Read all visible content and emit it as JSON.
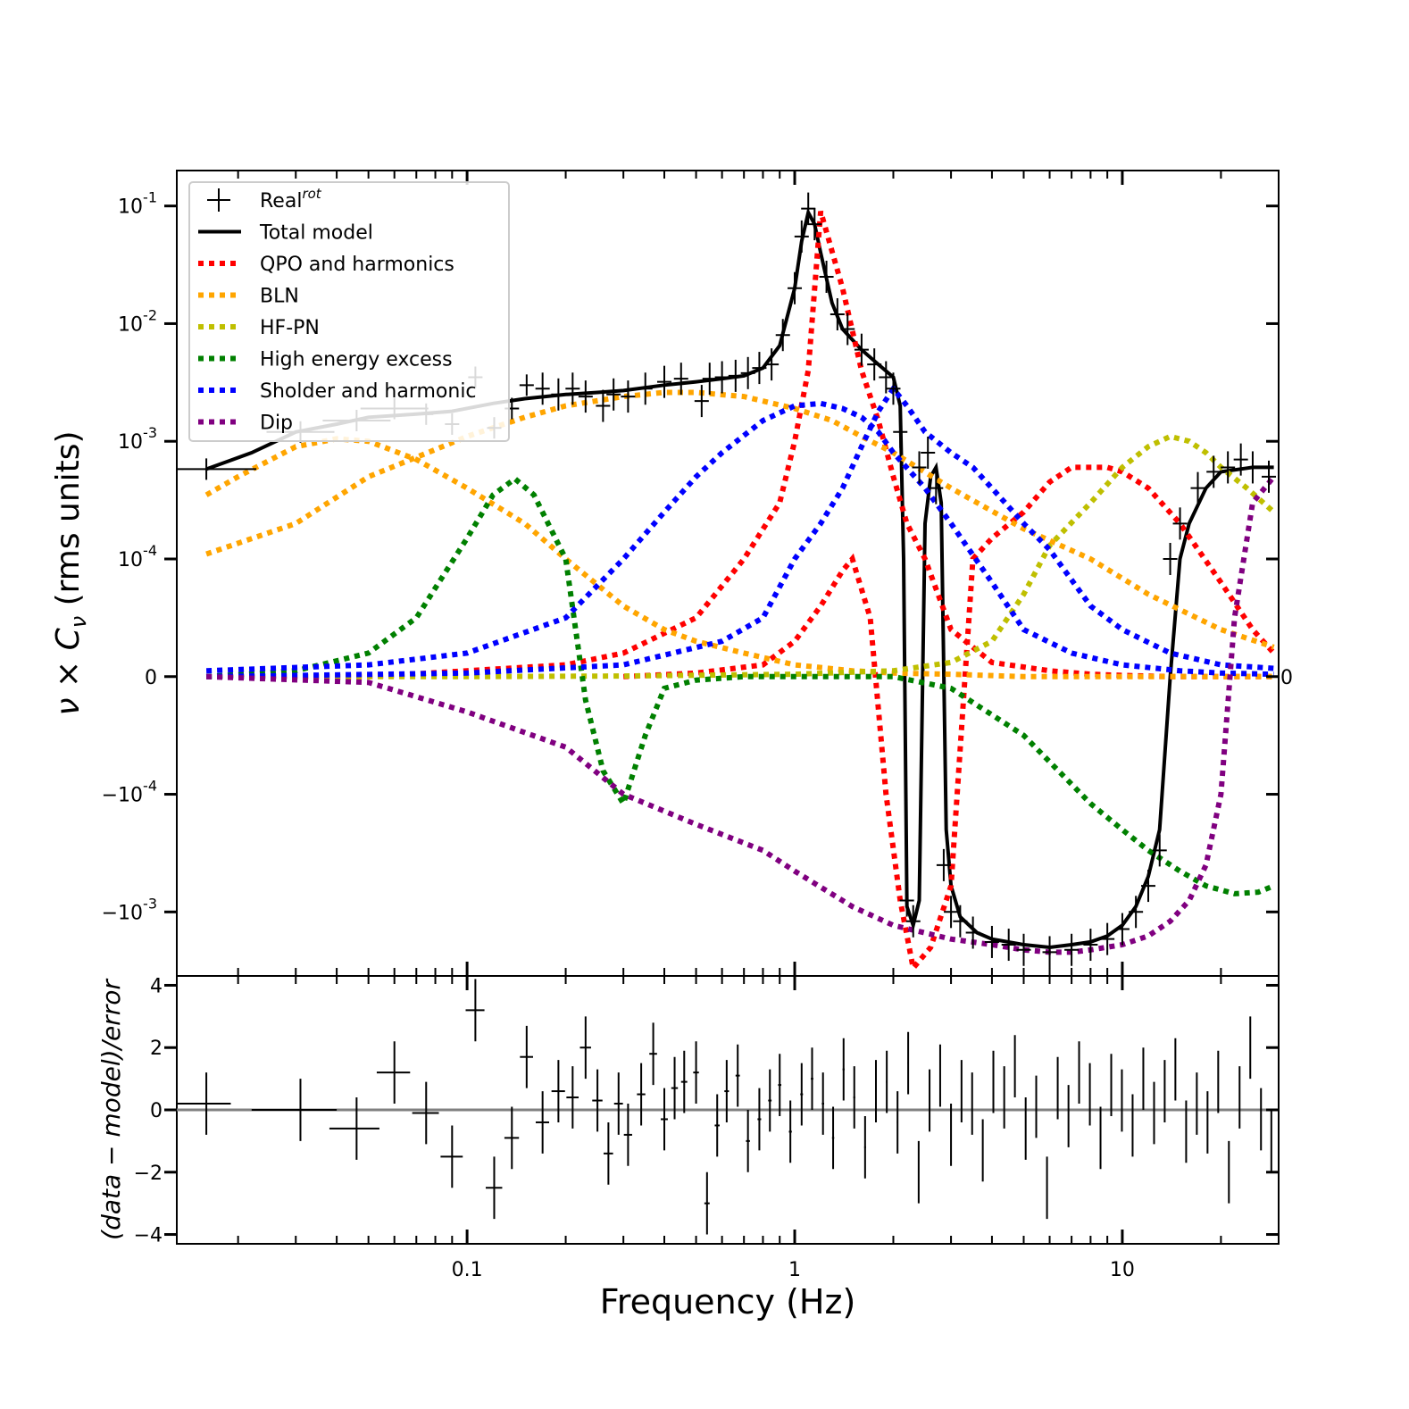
{
  "chart_data": [
    {
      "type": "line",
      "panel": "main",
      "x_scale": "log",
      "y_scale": "symlog",
      "xlim": [
        0.013,
        30
      ],
      "ylim": [
        -0.0035,
        0.2
      ],
      "ylabel": "ν × C_ν (rms units)",
      "ytick_labels": [
        "10^-1",
        "10^-2",
        "10^-3",
        "10^-4",
        "0",
        "−10^-4",
        "−10^-3"
      ],
      "ytick_values": [
        0.1,
        0.01,
        0.001,
        0.0001,
        0,
        -0.0001,
        -0.001
      ],
      "right_tick_label": "0",
      "legend_position": "upper-left",
      "series": [
        {
          "name": "Real",
          "name_sup": "rot",
          "style": "errorbar",
          "color": "#000000",
          "x": [
            0.016,
            0.031,
            0.046,
            0.06,
            0.075,
            0.09,
            0.106,
            0.121,
            0.137,
            0.152,
            0.17,
            0.19,
            0.21,
            0.23,
            0.26,
            0.28,
            0.31,
            0.35,
            0.4,
            0.45,
            0.52,
            0.55,
            0.6,
            0.66,
            0.72,
            0.78,
            0.85,
            0.92,
            1.0,
            1.05,
            1.1,
            1.15,
            1.25,
            1.35,
            1.45,
            1.6,
            1.75,
            1.9,
            2.0,
            2.1,
            2.2,
            2.3,
            2.4,
            2.55,
            2.7,
            2.85,
            3.0,
            3.2,
            3.5,
            4.0,
            4.5,
            5.0,
            6.0,
            7.0,
            8.0,
            9.0,
            10.0,
            11.0,
            12.0,
            13.0,
            14.0,
            15.0,
            17.0,
            19.0,
            21.0,
            23.0,
            25.0,
            28.0
          ],
          "y": [
            0.00058,
            0.0012,
            0.0015,
            0.0019,
            0.0017,
            0.0014,
            0.0035,
            0.0013,
            0.0019,
            0.003,
            0.0028,
            0.0025,
            0.0028,
            0.0024,
            0.002,
            0.0025,
            0.0024,
            0.0028,
            0.0032,
            0.0034,
            0.0022,
            0.0034,
            0.0035,
            0.0036,
            0.0038,
            0.0042,
            0.0045,
            0.008,
            0.02,
            0.055,
            0.095,
            0.07,
            0.025,
            0.012,
            0.009,
            0.006,
            0.0045,
            0.0035,
            0.0028,
            0.0012,
            -0.0008,
            -0.0012,
            0.0006,
            0.0008,
            0.0004,
            -0.0004,
            -0.001,
            -0.0012,
            -0.0015,
            -0.0018,
            -0.0019,
            -0.0021,
            -0.0022,
            -0.0021,
            -0.0019,
            -0.0017,
            -0.0014,
            -0.001,
            -0.0006,
            -0.0003,
            0.0001,
            0.0002,
            0.0004,
            0.00055,
            0.0006,
            0.0007,
            0.0006,
            0.0005
          ]
        },
        {
          "name": "Total model",
          "style": "solid",
          "color": "#000000",
          "x": [
            0.016,
            0.022,
            0.03,
            0.04,
            0.05,
            0.07,
            0.09,
            0.12,
            0.15,
            0.2,
            0.25,
            0.3,
            0.4,
            0.5,
            0.6,
            0.7,
            0.8,
            0.9,
            1.0,
            1.05,
            1.1,
            1.15,
            1.2,
            1.3,
            1.4,
            1.6,
            1.8,
            2.0,
            2.1,
            2.15,
            2.2,
            2.3,
            2.4,
            2.5,
            2.6,
            2.7,
            2.8,
            2.9,
            3.0,
            3.2,
            3.6,
            4.0,
            5.0,
            6.0,
            7.0,
            8.0,
            9.0,
            10.0,
            11.0,
            12.0,
            13.0,
            14.0,
            15.0,
            16.0,
            18.0,
            20.0,
            25.0,
            29.0
          ],
          "y": [
            0.00058,
            0.0008,
            0.0012,
            0.0014,
            0.0016,
            0.0017,
            0.0018,
            0.0021,
            0.0023,
            0.0025,
            0.0026,
            0.0027,
            0.003,
            0.0032,
            0.0034,
            0.0036,
            0.0042,
            0.0065,
            0.02,
            0.05,
            0.088,
            0.07,
            0.04,
            0.015,
            0.009,
            0.006,
            0.0045,
            0.0035,
            0.002,
            0.0001,
            -0.0009,
            -0.0013,
            -0.0008,
            0.0002,
            0.0005,
            0.0006,
            0.0003,
            -0.0002,
            -0.0006,
            -0.0011,
            -0.0015,
            -0.0017,
            -0.0019,
            -0.002,
            -0.0019,
            -0.0018,
            -0.0016,
            -0.0013,
            -0.0009,
            -0.0005,
            -0.0002,
            0.0,
            0.0001,
            0.0002,
            0.0004,
            0.00055,
            0.0006,
            0.0006
          ]
        },
        {
          "name": "QPO and harmonics",
          "style": "dotted",
          "color": "#ff0000",
          "x": [
            0.016,
            0.05,
            0.1,
            0.2,
            0.3,
            0.5,
            0.7,
            0.9,
            1.0,
            1.1,
            1.2,
            1.4,
            1.6,
            1.8,
            2.0,
            2.2,
            2.5,
            3.0,
            4.0,
            6.0,
            8.0,
            10.0,
            14.0,
            20.0,
            29.0
          ],
          "y": [
            0.0,
            0.0,
            5e-06,
            1e-05,
            2e-05,
            5e-05,
            0.0001,
            0.0003,
            0.001,
            0.004,
            0.09,
            0.02,
            0.004,
            0.0015,
            0.0005,
            0.0002,
            0.0001,
            4e-05,
            1.2e-05,
            5e-06,
            2e-06,
            1e-06,
            0.0,
            0.0,
            0.0
          ]
        },
        {
          "name": "QPO and harmonics (2)",
          "style": "dotted",
          "color": "#ff0000",
          "x": [
            0.3,
            0.5,
            0.8,
            1.0,
            1.2,
            1.4,
            1.5,
            1.7,
            1.9,
            2.1,
            2.3,
            2.6,
            3.0,
            3.5,
            4.0,
            5.0,
            6.0,
            7.0,
            8.0,
            9.0,
            10.0,
            12.0,
            15.0,
            20.0,
            25.0,
            29.0
          ],
          "y": [
            0.0,
            3e-06,
            1e-05,
            3e-05,
            6e-05,
            9e-05,
            0.0001,
            5e-05,
            -0.0001,
            -0.0008,
            -0.003,
            -0.002,
            -0.0006,
            0.0001,
            0.00015,
            0.00025,
            0.00045,
            0.0006,
            0.0006,
            0.0006,
            0.00055,
            0.0004,
            0.0002,
            8e-05,
            4e-05,
            2e-05
          ]
        },
        {
          "name": "BLN",
          "style": "dotted",
          "color": "#ffa500",
          "x": [
            0.016,
            0.02,
            0.03,
            0.04,
            0.05,
            0.07,
            0.1,
            0.15,
            0.2,
            0.3,
            0.4,
            0.5,
            0.7,
            1.0,
            1.5,
            2.0,
            3.0,
            5.0,
            8.0,
            12.0,
            20.0,
            29.0
          ],
          "y": [
            0.00035,
            0.0005,
            0.0009,
            0.00105,
            0.001,
            0.0007,
            0.0004,
            0.0002,
            0.0001,
            6e-05,
            4e-05,
            3e-05,
            2e-05,
            1e-05,
            5e-06,
            3e-06,
            2e-06,
            0.0,
            0.0,
            0.0,
            0.0,
            0.0
          ]
        },
        {
          "name": "BLN (2)",
          "style": "dotted",
          "color": "#ffa500",
          "x": [
            0.016,
            0.03,
            0.05,
            0.08,
            0.1,
            0.15,
            0.2,
            0.3,
            0.4,
            0.5,
            0.7,
            1.0,
            1.3,
            1.6,
            2.0,
            3.0,
            5.0,
            8.0,
            12.0,
            20.0,
            29.0
          ],
          "y": [
            0.00011,
            0.0002,
            0.0005,
            0.00085,
            0.0011,
            0.0016,
            0.002,
            0.0024,
            0.0026,
            0.0026,
            0.0024,
            0.0019,
            0.0015,
            0.0011,
            0.0008,
            0.0004,
            0.00018,
            0.0001,
            7e-05,
            4e-05,
            2.5e-05
          ]
        },
        {
          "name": "HF-PN",
          "style": "dotted",
          "color": "#bfbf00",
          "x": [
            0.016,
            0.1,
            0.3,
            1.0,
            2.0,
            3.0,
            4.0,
            5.0,
            6.0,
            8.0,
            10.0,
            12.0,
            14.0,
            16.0,
            18.0,
            20.0,
            24.0,
            29.0
          ],
          "y": [
            0.0,
            0.0,
            5e-07,
            2e-06,
            5e-06,
            1.2e-05,
            3e-05,
            7e-05,
            0.00013,
            0.0003,
            0.0006,
            0.0009,
            0.0011,
            0.001,
            0.0008,
            0.0006,
            0.0004,
            0.00025
          ]
        },
        {
          "name": "High energy excess",
          "style": "dotted",
          "color": "#008000",
          "x": [
            0.016,
            0.03,
            0.05,
            0.07,
            0.1,
            0.12,
            0.14,
            0.16,
            0.2,
            0.23,
            0.26,
            0.3,
            0.35,
            0.4,
            0.5,
            0.7,
            1.0,
            2.0,
            3.0,
            5.0,
            8.0,
            10.0,
            12.0,
            15.0,
            18.0,
            22.0,
            26.0,
            29.0
          ],
          "y": [
            0.0,
            5e-06,
            2e-05,
            5e-05,
            0.00015,
            0.00035,
            0.00048,
            0.00035,
            0.0001,
            -2e-05,
            -8e-05,
            -0.00012,
            -5e-05,
            -1e-05,
            -3e-06,
            0.0,
            0.0,
            0.0,
            -1e-05,
            -5e-05,
            -0.00012,
            -0.0002,
            -0.0003,
            -0.00045,
            -0.0006,
            -0.0007,
            -0.00068,
            -0.0006
          ]
        },
        {
          "name": "Sholder and harmonic",
          "style": "dotted",
          "color": "#0000ff",
          "x": [
            0.016,
            0.05,
            0.1,
            0.2,
            0.3,
            0.4,
            0.5,
            0.6,
            0.8,
            1.0,
            1.2,
            1.4,
            1.6,
            1.8,
            2.0,
            2.5,
            3.0,
            4.0,
            5.0,
            7.0,
            10.0,
            15.0,
            20.0,
            29.0
          ],
          "y": [
            5e-06,
            1e-05,
            2e-05,
            5e-05,
            0.0001,
            0.00025,
            0.0005,
            0.0008,
            0.0015,
            0.002,
            0.0021,
            0.0019,
            0.0016,
            0.0012,
            0.0008,
            0.0004,
            0.0002,
            8e-05,
            4e-05,
            2e-05,
            1e-05,
            5e-06,
            3e-06,
            2e-06
          ]
        },
        {
          "name": "Sholder and harmonic (2)",
          "style": "dotted",
          "color": "#0000ff",
          "x": [
            0.016,
            0.1,
            0.3,
            0.6,
            0.8,
            1.0,
            1.2,
            1.4,
            1.6,
            1.8,
            2.0,
            2.2,
            2.5,
            3.0,
            3.5,
            4.0,
            5.0,
            6.0,
            8.0,
            10.0,
            14.0,
            20.0,
            29.0
          ],
          "y": [
            0.0,
            3e-06,
            1e-05,
            3e-05,
            5e-05,
            0.0001,
            0.0002,
            0.0004,
            0.0009,
            0.0018,
            0.0028,
            0.002,
            0.0012,
            0.0008,
            0.0006,
            0.0004,
            0.0002,
            0.00012,
            6e-05,
            4e-05,
            2e-05,
            1e-05,
            7e-06
          ]
        },
        {
          "name": "Dip",
          "style": "dotted",
          "color": "#800080",
          "x": [
            0.016,
            0.05,
            0.1,
            0.2,
            0.3,
            0.5,
            0.8,
            1.0,
            1.5,
            2.0,
            3.0,
            4.0,
            5.0,
            6.0,
            7.0,
            8.0,
            10.0,
            12.0,
            14.0,
            16.0,
            18.0,
            20.0,
            22.0,
            25.0,
            29.0
          ],
          "y": [
            0.0,
            -5e-06,
            -3e-05,
            -6e-05,
            -0.0001,
            -0.00018,
            -0.0003,
            -0.00045,
            -0.0009,
            -0.0013,
            -0.0017,
            -0.0019,
            -0.0021,
            -0.0022,
            -0.0022,
            -0.0021,
            -0.0019,
            -0.0016,
            -0.0012,
            -0.0008,
            -0.0004,
            -0.0001,
            5e-05,
            0.0003,
            0.0005
          ]
        }
      ]
    },
    {
      "type": "scatter",
      "panel": "residuals",
      "x_scale": "log",
      "xlim": [
        0.013,
        30
      ],
      "ylim": [
        -4.3,
        4.3
      ],
      "xlabel": "Frequency (Hz)",
      "ylabel": "(data − model)/error",
      "xtick_labels": [
        "0.1",
        "1",
        "10"
      ],
      "xtick_values": [
        0.1,
        1,
        10
      ],
      "ytick_labels": [
        "4",
        "2",
        "0",
        "−2",
        "−4"
      ],
      "ytick_values": [
        4,
        2,
        0,
        -2,
        -4
      ],
      "zero_line_color": "#808080",
      "residuals": {
        "x": [
          0.016,
          0.031,
          0.046,
          0.06,
          0.075,
          0.09,
          0.106,
          0.121,
          0.137,
          0.152,
          0.17,
          0.19,
          0.21,
          0.23,
          0.25,
          0.27,
          0.29,
          0.31,
          0.34,
          0.37,
          0.4,
          0.43,
          0.46,
          0.5,
          0.54,
          0.58,
          0.62,
          0.67,
          0.72,
          0.78,
          0.84,
          0.9,
          0.97,
          1.05,
          1.13,
          1.22,
          1.31,
          1.41,
          1.52,
          1.64,
          1.77,
          1.91,
          2.06,
          2.22,
          2.39,
          2.58,
          2.78,
          3.0,
          3.23,
          3.48,
          3.75,
          4.04,
          4.36,
          4.7,
          5.07,
          5.46,
          5.89,
          6.35,
          6.85,
          7.38,
          7.96,
          8.58,
          9.25,
          9.97,
          10.75,
          11.59,
          12.5,
          13.47,
          14.52,
          15.66,
          16.88,
          18.2,
          19.62,
          21.15,
          22.8,
          24.58,
          26.5,
          28.5
        ],
        "y": [
          0.2,
          0.0,
          -0.6,
          1.2,
          -0.1,
          -1.5,
          3.2,
          -2.5,
          -0.9,
          1.7,
          -0.4,
          0.6,
          0.4,
          2.0,
          0.3,
          -1.4,
          0.2,
          -0.8,
          0.5,
          1.8,
          -0.3,
          0.7,
          0.9,
          1.2,
          -3.0,
          -0.5,
          0.6,
          1.1,
          -1.0,
          -0.3,
          0.3,
          0.8,
          -0.7,
          0.5,
          1.0,
          0.2,
          -0.9,
          1.3,
          0.4,
          -1.2,
          0.6,
          0.9,
          -0.4,
          1.5,
          -2.0,
          0.3,
          1.1,
          -0.8,
          0.6,
          0.2,
          -1.3,
          0.9,
          0.4,
          1.4,
          -0.6,
          0.1,
          -2.5,
          0.7,
          -0.2,
          1.2,
          0.5,
          -0.9,
          0.8,
          0.3,
          -0.5,
          1.0,
          -0.1,
          0.6,
          1.3,
          -0.7,
          0.2,
          -0.4,
          0.9,
          -2.0,
          0.4,
          2.0,
          -0.3,
          -1.0
        ],
        "xerr_left": [
          0.003,
          0.009,
          0.008,
          0.007,
          0.007,
          0.007,
          0.007,
          0.007,
          0.007,
          0.007,
          0.008,
          0.009,
          0.009,
          0.009,
          0.009,
          0.009,
          0.009,
          0.009,
          0.01,
          0.01,
          0.01,
          0.01,
          0.01,
          0.01,
          0.01,
          0.01,
          0.01,
          0.01,
          0.01,
          0.01,
          0.01,
          0.01,
          0.01,
          0.01,
          0.01,
          0.01,
          0.01,
          0.01,
          0.01,
          0.01,
          0.01,
          0.01,
          0.01,
          0.01,
          0.01,
          0.01,
          0.01,
          0.01,
          0.01,
          0.01,
          0.01,
          0.01,
          0.01,
          0.01,
          0.01,
          0.01,
          0.01,
          0.01,
          0.01,
          0.01,
          0.01,
          0.01,
          0.01,
          0.01,
          0.01,
          0.01,
          0.01,
          0.01,
          0.01,
          0.01,
          0.01,
          0.01,
          0.01,
          0.01,
          0.01,
          0.01,
          0.01,
          0.01
        ],
        "yerr": 1.0
      }
    }
  ]
}
